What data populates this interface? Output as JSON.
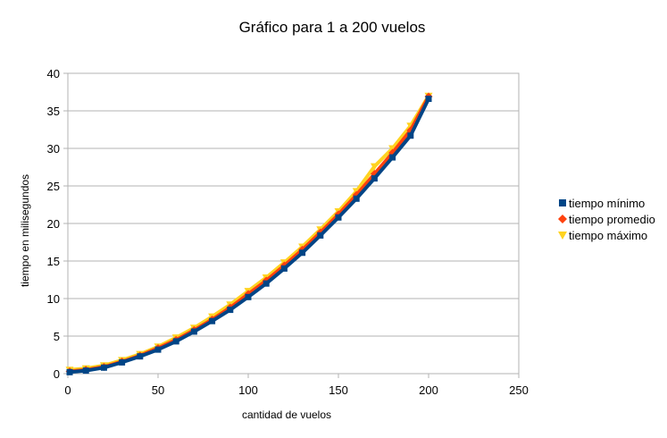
{
  "chart_data": {
    "type": "scatter",
    "title": "Gráfico para 1 a 200 vuelos",
    "xlabel": "cantidad de vuelos",
    "ylabel": "tiempo en milisegundos",
    "xlim": [
      0,
      250
    ],
    "ylim": [
      0,
      40
    ],
    "x_ticks": [
      0,
      50,
      100,
      150,
      200,
      250
    ],
    "y_ticks": [
      0,
      5,
      10,
      15,
      20,
      25,
      30,
      35,
      40
    ],
    "grid": "horizontal",
    "legend_position": "right",
    "x": [
      1,
      10,
      20,
      30,
      40,
      50,
      60,
      70,
      80,
      90,
      100,
      110,
      120,
      130,
      140,
      150,
      160,
      170,
      180,
      190,
      200
    ],
    "series": [
      {
        "name": "tiempo mínimo",
        "color": "#004586",
        "marker": "square",
        "values": [
          0.2,
          0.4,
          0.8,
          1.5,
          2.3,
          3.2,
          4.3,
          5.6,
          7.0,
          8.5,
          10.2,
          12.0,
          14.0,
          16.1,
          18.4,
          20.8,
          23.3,
          26.0,
          28.8,
          31.7,
          36.6
        ]
      },
      {
        "name": "tiempo promedio",
        "color": "#ff420e",
        "marker": "diamond",
        "values": [
          0.3,
          0.5,
          0.9,
          1.6,
          2.4,
          3.4,
          4.5,
          5.8,
          7.2,
          8.8,
          10.6,
          12.4,
          14.4,
          16.5,
          18.8,
          21.2,
          23.8,
          26.6,
          29.4,
          32.4,
          36.9
        ]
      },
      {
        "name": "tiempo máximo",
        "color": "#ffd320",
        "marker": "triangle-down",
        "values": [
          0.5,
          0.7,
          1.1,
          1.8,
          2.6,
          3.6,
          4.8,
          6.1,
          7.6,
          9.2,
          11.0,
          12.8,
          14.8,
          16.9,
          19.2,
          21.6,
          24.3,
          27.6,
          30.0,
          33.0,
          37.0
        ]
      }
    ]
  }
}
